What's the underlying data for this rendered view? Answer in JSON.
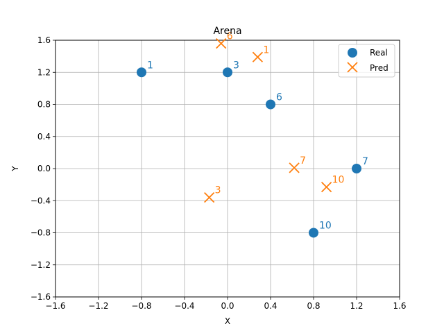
{
  "chart_data": {
    "type": "scatter",
    "title": "Arena",
    "xlabel": "X",
    "ylabel": "Y",
    "xlim": [
      -1.6,
      1.6
    ],
    "ylim": [
      -1.6,
      1.6
    ],
    "xticks": [
      "−1.6",
      "−1.2",
      "−0.8",
      "−0.4",
      "0.0",
      "0.4",
      "0.8",
      "1.2",
      "1.6"
    ],
    "yticks": [
      "−1.6",
      "−1.2",
      "−0.8",
      "−0.4",
      "0.0",
      "0.4",
      "0.8",
      "1.2",
      "1.6"
    ],
    "grid": true,
    "legend_position": "top-right",
    "series": [
      {
        "name": "Real",
        "marker": "circle",
        "color": "#1f77b4",
        "points": [
          {
            "label": "1",
            "x": -0.8,
            "y": 1.2
          },
          {
            "label": "3",
            "x": 0.0,
            "y": 1.2
          },
          {
            "label": "6",
            "x": 0.4,
            "y": 0.8
          },
          {
            "label": "7",
            "x": 1.2,
            "y": 0.0
          },
          {
            "label": "10",
            "x": 0.8,
            "y": -0.8
          }
        ]
      },
      {
        "name": "Pred",
        "marker": "x",
        "color": "#ff7f0e",
        "points": [
          {
            "label": "6",
            "x": -0.06,
            "y": 1.56
          },
          {
            "label": "1",
            "x": 0.28,
            "y": 1.39
          },
          {
            "label": "7",
            "x": 0.62,
            "y": 0.01
          },
          {
            "label": "10",
            "x": 0.92,
            "y": -0.23
          },
          {
            "label": "3",
            "x": -0.17,
            "y": -0.36
          }
        ]
      }
    ]
  }
}
